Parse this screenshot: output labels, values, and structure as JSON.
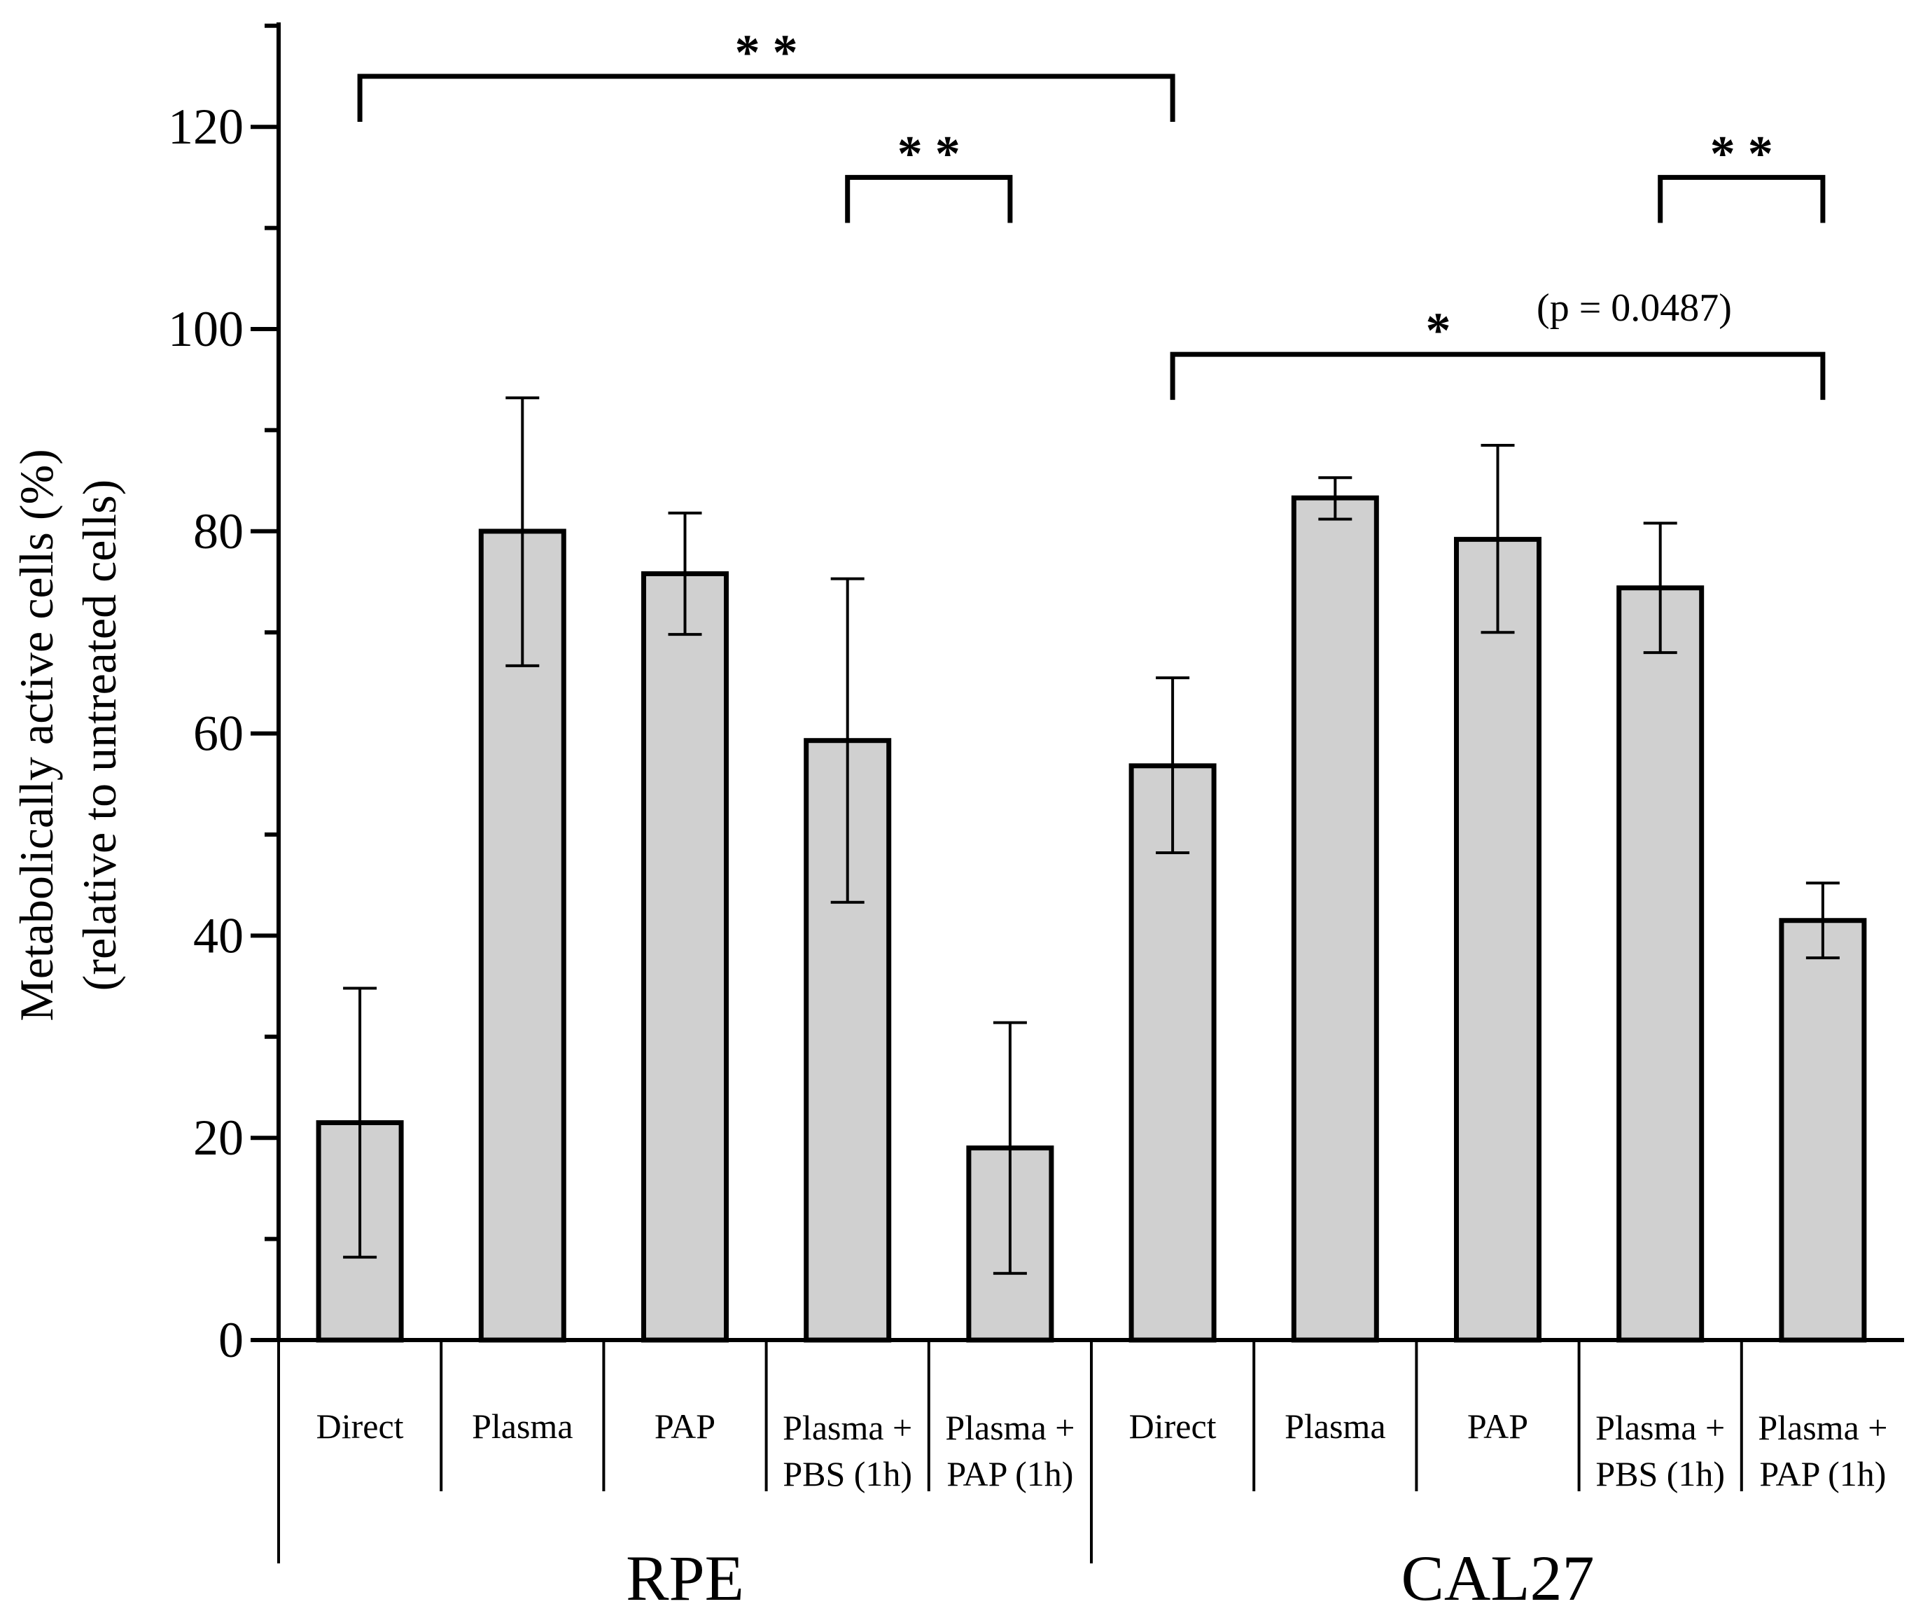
{
  "chart_data": {
    "type": "bar",
    "ylabel_line1": "Metabolically active cells (%)",
    "ylabel_line2": "(relative to untreated cells)",
    "ylim": [
      0,
      130
    ],
    "yticks": [
      0,
      20,
      40,
      60,
      80,
      100,
      120
    ],
    "yticks_minor": [
      10,
      30,
      50,
      70,
      90,
      110,
      130
    ],
    "groups": [
      {
        "name": "RPE",
        "start": 0,
        "end": 4
      },
      {
        "name": "CAL27",
        "start": 5,
        "end": 9
      }
    ],
    "categories": [
      [
        "Direct"
      ],
      [
        "Plasma"
      ],
      [
        "PAP"
      ],
      [
        "Plasma +",
        "PBS (1h)"
      ],
      [
        "Plasma +",
        "PAP (1h)"
      ],
      [
        "Direct"
      ],
      [
        "Plasma"
      ],
      [
        "PAP"
      ],
      [
        "Plasma +",
        "PBS (1h)"
      ],
      [
        "Plasma +",
        "PAP (1h)"
      ]
    ],
    "values": [
      21.5,
      80.0,
      75.8,
      59.3,
      19.0,
      56.8,
      83.3,
      79.2,
      74.4,
      41.5
    ],
    "err_low": [
      13.3,
      13.3,
      6.0,
      16.0,
      12.4,
      8.6,
      2.1,
      9.2,
      6.4,
      3.7
    ],
    "err_high": [
      13.3,
      13.2,
      6.0,
      16.0,
      12.4,
      8.7,
      2.0,
      9.3,
      6.4,
      3.7
    ],
    "bar_color": "#d0d0d0",
    "significance": [
      {
        "from": 0,
        "to": 5,
        "y": 125,
        "drop": 4.5,
        "label": "* *",
        "note": ""
      },
      {
        "from": 3,
        "to": 4,
        "y": 115,
        "drop": 4.5,
        "label": "* *",
        "note": ""
      },
      {
        "from": 8,
        "to": 9,
        "y": 115,
        "drop": 4.5,
        "label": "* *",
        "note": ""
      },
      {
        "from": 5,
        "to": 9,
        "y": 97.5,
        "drop": 4.5,
        "label": "*",
        "note": "(p = 0.0487)"
      }
    ]
  }
}
